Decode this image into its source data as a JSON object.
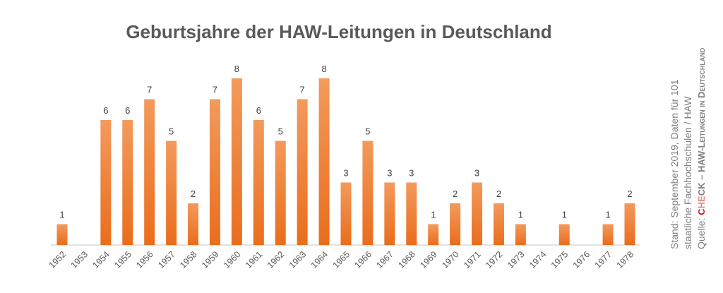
{
  "chart_data": {
    "type": "bar",
    "title": "Geburtsjahre der HAW-Leitungen in Deutschland",
    "categories": [
      "1952",
      "1953",
      "1954",
      "1955",
      "1956",
      "1957",
      "1958",
      "1959",
      "1960",
      "1961",
      "1962",
      "1963",
      "1964",
      "1965",
      "1966",
      "1967",
      "1968",
      "1969",
      "1970",
      "1971",
      "1972",
      "1973",
      "1974",
      "1975",
      "1976",
      "1977",
      "1978"
    ],
    "values": [
      1,
      0,
      6,
      6,
      7,
      5,
      2,
      7,
      8,
      6,
      5,
      7,
      8,
      3,
      5,
      3,
      3,
      1,
      2,
      3,
      2,
      1,
      0,
      1,
      0,
      1,
      2
    ],
    "xlabel": "",
    "ylabel": "",
    "ylim": [
      0,
      8
    ],
    "grid": false,
    "bar_color": "#ef7d32"
  },
  "note": {
    "line1": "Stand: September 2019, Daten für 101",
    "line2": "staatliche Fachhochschulen / HAW",
    "source_label": "Quelle: ",
    "source_c": "C",
    "source_he": "HE",
    "source_ck": "CK",
    "source_rest": " – HAW-Leitungen in Deutschland"
  }
}
